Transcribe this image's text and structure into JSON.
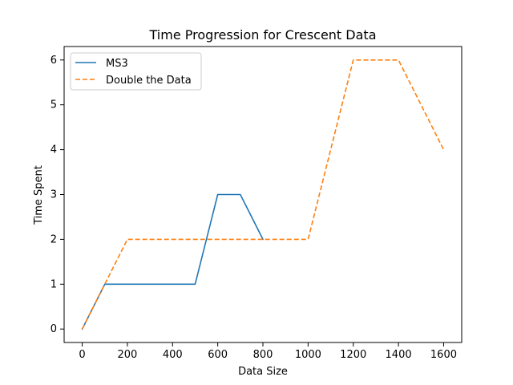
{
  "chart_data": {
    "type": "line",
    "title": "Time Progression for Crescent Data",
    "xlabel": "Data Size",
    "ylabel": "Time Spent",
    "xlim": [
      -80,
      1680
    ],
    "ylim": [
      -0.3,
      6.3
    ],
    "x_ticks": [
      0,
      200,
      400,
      600,
      800,
      1000,
      1200,
      1400,
      1600
    ],
    "y_ticks": [
      0,
      1,
      2,
      3,
      4,
      5,
      6
    ],
    "grid": false,
    "legend_position": "top-left",
    "series": [
      {
        "name": "MS3",
        "color": "#1f77b4",
        "dashed": false,
        "x": [
          0,
          100,
          200,
          300,
          400,
          500,
          600,
          700,
          800
        ],
        "y": [
          0,
          1,
          1,
          1,
          1,
          1,
          3,
          3,
          2
        ]
      },
      {
        "name": "Double the Data",
        "color": "#ff7f0e",
        "dashed": true,
        "x": [
          0,
          100,
          200,
          300,
          400,
          500,
          600,
          700,
          800,
          900,
          1000,
          1200,
          1400,
          1600
        ],
        "y": [
          0,
          1,
          2,
          2,
          2,
          2,
          2,
          2,
          2,
          2,
          2,
          6,
          6,
          4
        ]
      }
    ]
  }
}
